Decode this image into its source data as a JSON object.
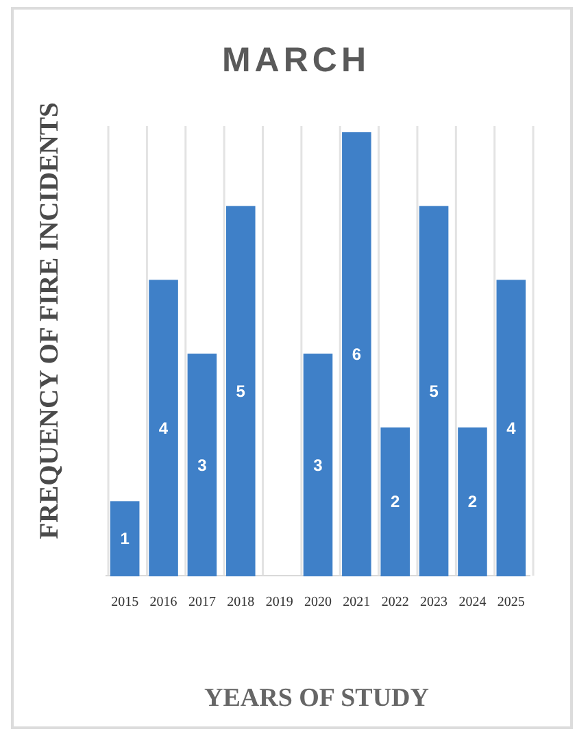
{
  "chart_data": {
    "type": "bar",
    "title": "MARCH",
    "xlabel": "YEARS OF STUDY",
    "ylabel": "FREQUENCY OF FIRE INCIDENTS",
    "categories": [
      "2015",
      "2016",
      "2017",
      "2018",
      "2019",
      "2020",
      "2021",
      "2022",
      "2023",
      "2024",
      "2025"
    ],
    "values": [
      1,
      4,
      3,
      5,
      0,
      3,
      6,
      2,
      5,
      2,
      4
    ],
    "value_labels": [
      "1",
      "4",
      "3",
      "5",
      null,
      "3",
      "6",
      "2",
      "5",
      "2",
      "4"
    ],
    "color": "#3f80c8",
    "grid": "x",
    "tick_labels": "x"
  }
}
